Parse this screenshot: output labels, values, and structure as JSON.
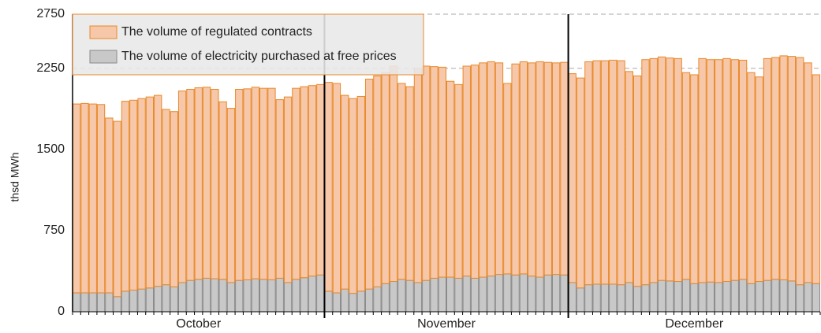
{
  "chart_data": {
    "type": "stacked_bar",
    "y_label": "thsd MWh",
    "months": [
      {
        "label": "October",
        "days": 31
      },
      {
        "label": "November",
        "days": 30
      },
      {
        "label": "December",
        "days": 31
      }
    ],
    "ylim": [
      0,
      2750
    ],
    "yticks": [
      0,
      750,
      1500,
      2250,
      2750
    ],
    "grid": true,
    "legend": "upper-left",
    "series": [
      {
        "name": "The volume of electricity purchased at free prices",
        "color": "#c8c8c8",
        "edge": "#8a8a8a",
        "values": [
          175,
          175,
          175,
          175,
          175,
          140,
          190,
          200,
          210,
          220,
          235,
          250,
          230,
          270,
          290,
          300,
          310,
          305,
          300,
          270,
          290,
          295,
          305,
          300,
          295,
          310,
          270,
          300,
          315,
          330,
          340,
          190,
          175,
          210,
          170,
          190,
          210,
          230,
          260,
          280,
          300,
          290,
          270,
          290,
          310,
          320,
          320,
          310,
          330,
          310,
          320,
          330,
          345,
          350,
          340,
          350,
          330,
          320,
          340,
          345,
          340,
          270,
          220,
          250,
          255,
          255,
          255,
          250,
          270,
          235,
          250,
          270,
          290,
          285,
          280,
          300,
          260,
          270,
          275,
          270,
          280,
          290,
          300,
          260,
          280,
          290,
          300,
          295,
          285,
          250,
          270,
          260
        ]
      },
      {
        "name": "The volume of regulated contracts",
        "color": "#f6c7a8",
        "edge": "#e8892a",
        "values": [
          1745,
          1750,
          1745,
          1740,
          1615,
          1620,
          1755,
          1755,
          1760,
          1765,
          1765,
          1620,
          1620,
          1770,
          1765,
          1770,
          1765,
          1750,
          1640,
          1610,
          1765,
          1765,
          1770,
          1765,
          1770,
          1650,
          1715,
          1765,
          1765,
          1760,
          1760,
          1930,
          1935,
          1790,
          1800,
          1800,
          1940,
          1950,
          1950,
          1990,
          1810,
          1790,
          1980,
          1980,
          1955,
          1940,
          1810,
          1790,
          1940,
          1970,
          1980,
          1980,
          1955,
          1760,
          1950,
          1960,
          1970,
          1990,
          1965,
          1955,
          1965,
          1930,
          1940,
          2060,
          2065,
          2065,
          2070,
          2070,
          1950,
          1945,
          2080,
          2070,
          2065,
          2060,
          2060,
          1910,
          1930,
          2070,
          2055,
          2060,
          2060,
          2040,
          2025,
          1950,
          1890,
          2050,
          2050,
          2070,
          2075,
          2100,
          2030,
          1930
        ]
      }
    ]
  }
}
